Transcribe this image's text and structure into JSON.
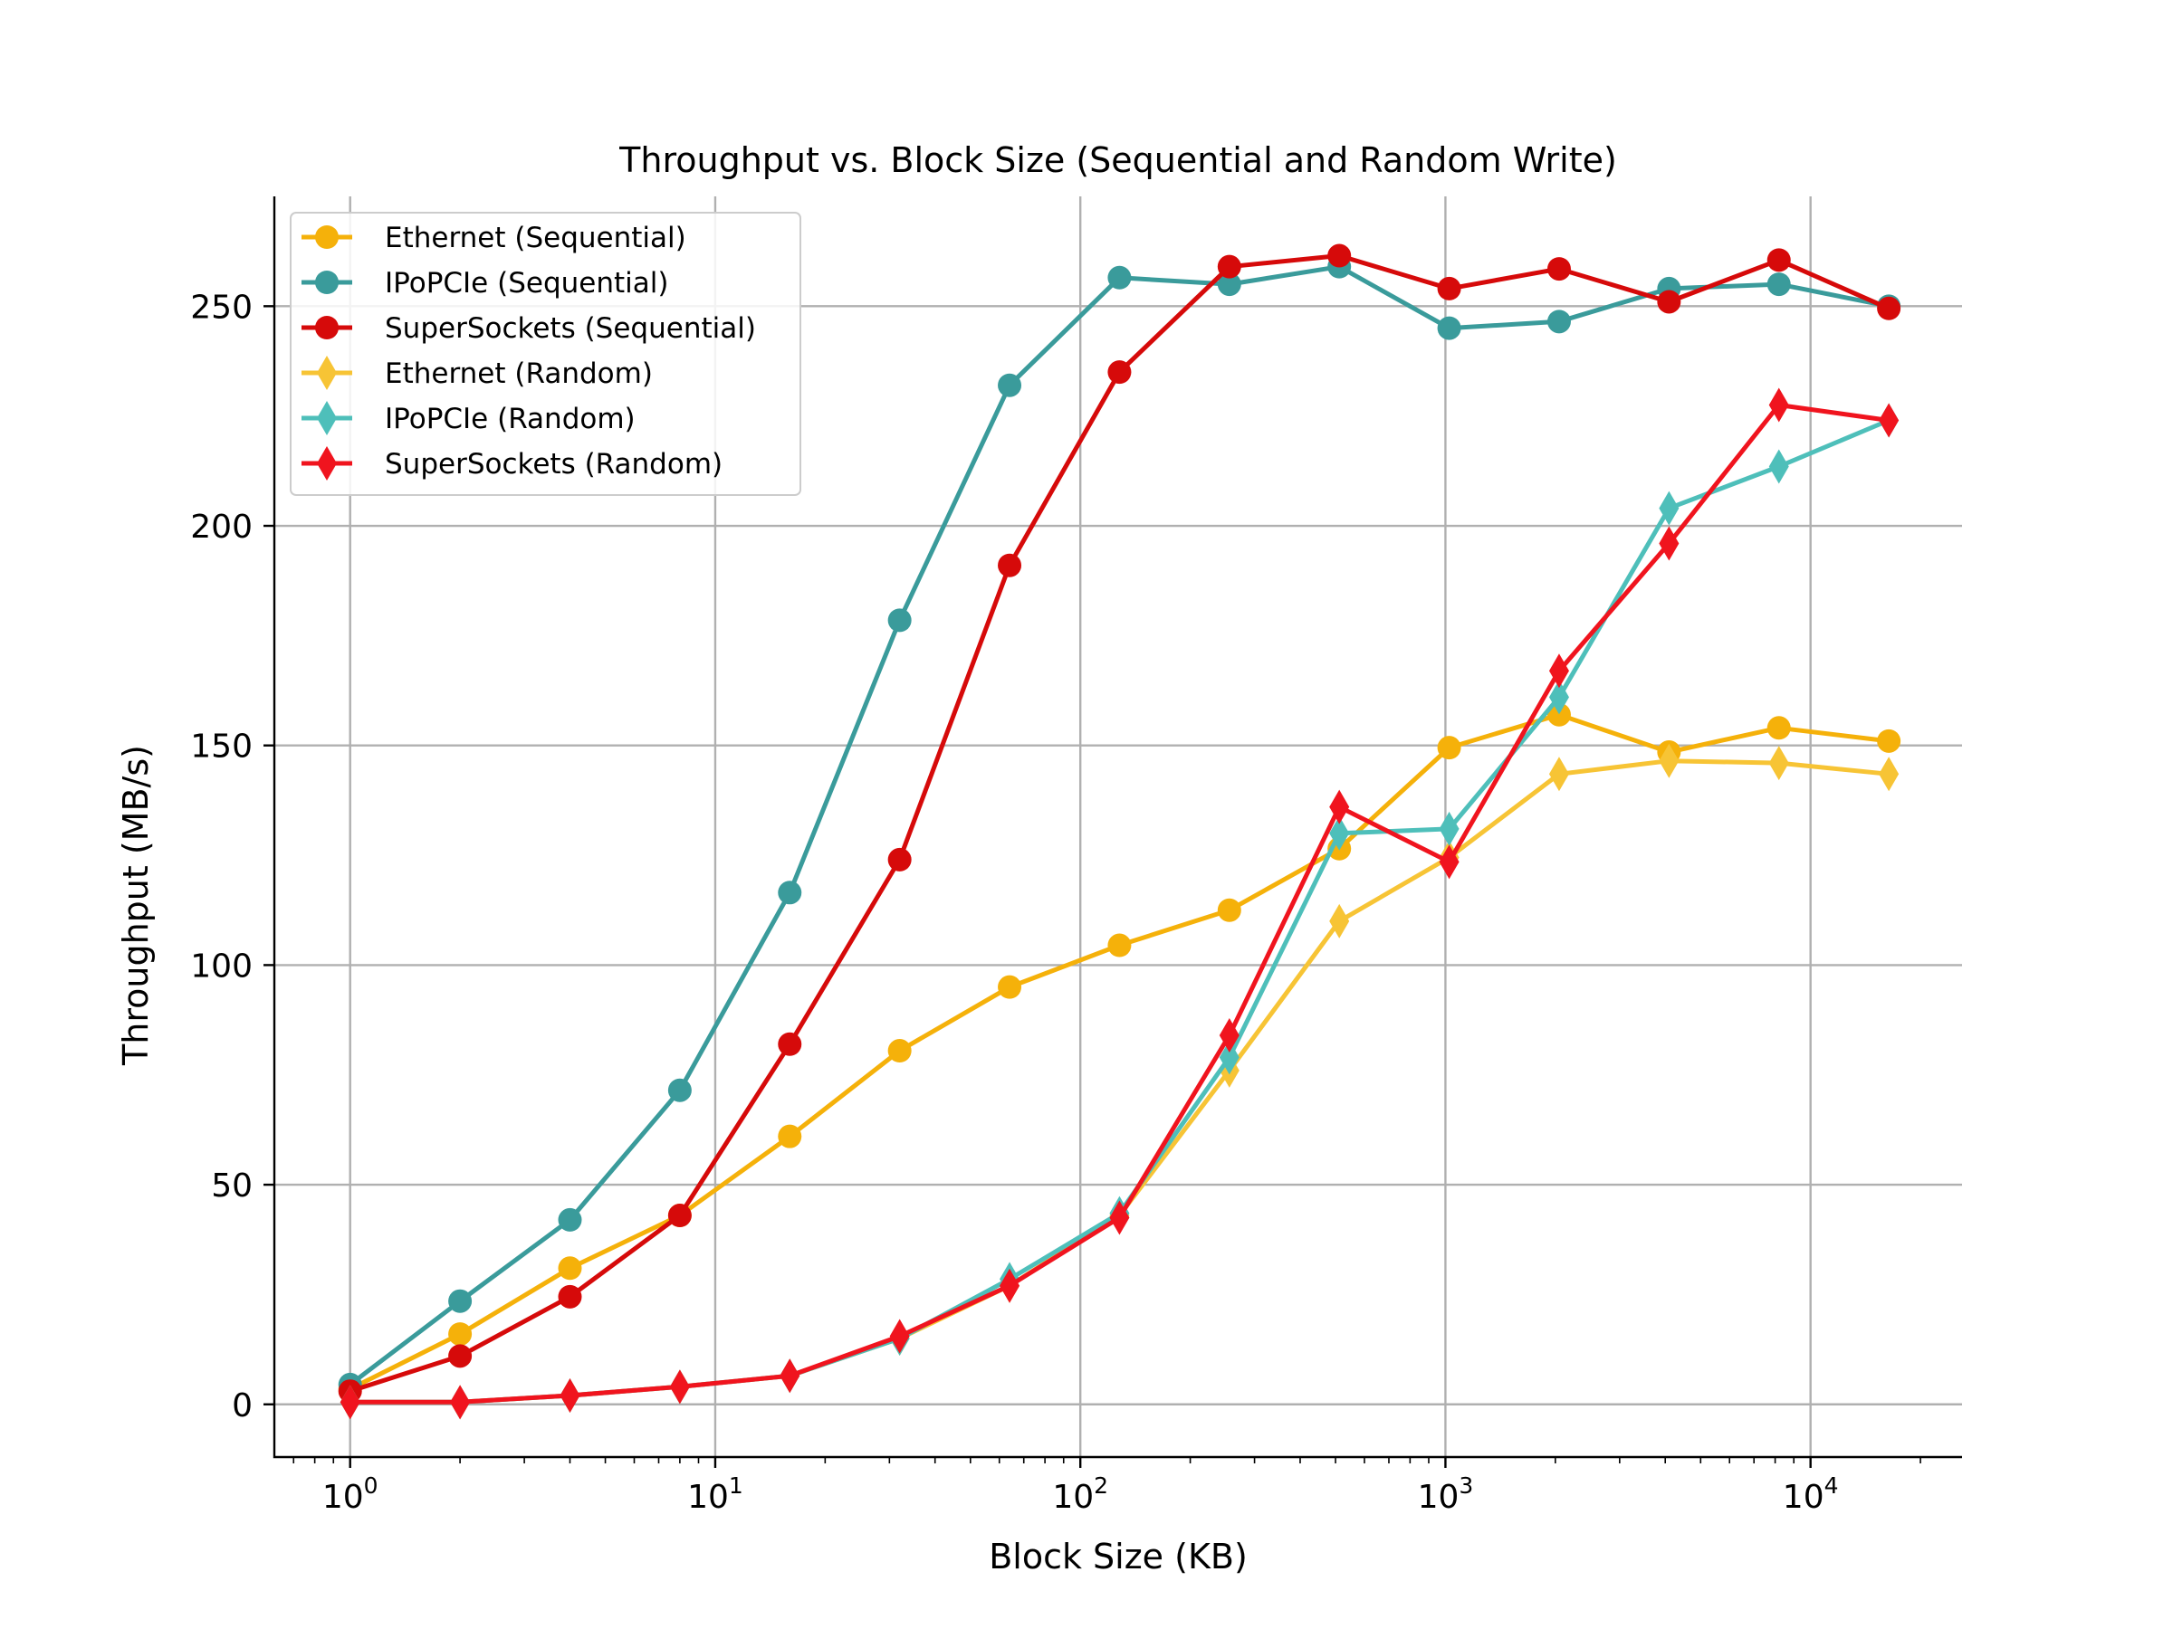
{
  "chart_data": {
    "type": "line",
    "title": "Throughput vs. Block Size (Sequential and Random Write)",
    "xlabel": "Block Size (KB)",
    "ylabel": "Throughput (MB/s)",
    "xscale": "log",
    "xlim": [
      0.62,
      26000
    ],
    "ylim": [
      -12,
      275
    ],
    "xticks": [
      {
        "value": 1,
        "base": "10",
        "exp": "0"
      },
      {
        "value": 10,
        "base": "10",
        "exp": "1"
      },
      {
        "value": 100,
        "base": "10",
        "exp": "2"
      },
      {
        "value": 1000,
        "base": "10",
        "exp": "3"
      },
      {
        "value": 10000,
        "base": "10",
        "exp": "4"
      }
    ],
    "yticks": [
      {
        "value": 0,
        "label": "0"
      },
      {
        "value": 50,
        "label": "50"
      },
      {
        "value": 100,
        "label": "100"
      },
      {
        "value": 150,
        "label": "150"
      },
      {
        "value": 200,
        "label": "200"
      },
      {
        "value": 250,
        "label": "250"
      }
    ],
    "grid": true,
    "legend_position": "top-left",
    "x": [
      1,
      2,
      4,
      8,
      16,
      32,
      64,
      128,
      256,
      512,
      1024,
      2048,
      4096,
      8192,
      16384
    ],
    "series": [
      {
        "name": "Ethernet (Sequential)",
        "color": "#f5b10a",
        "marker": "circle",
        "values": [
          3.5,
          16,
          31,
          43,
          61,
          80.5,
          95,
          104.5,
          112.5,
          126.5,
          149.5,
          157,
          148.5,
          154,
          151
        ]
      },
      {
        "name": "IPoPCIe (Sequential)",
        "color": "#3a9b9b",
        "marker": "circle",
        "values": [
          4.5,
          23.5,
          42,
          71.5,
          116.5,
          178.5,
          232,
          256.5,
          255,
          259,
          245,
          246.5,
          254,
          255,
          250
        ]
      },
      {
        "name": "SuperSockets (Sequential)",
        "color": "#d60a0a",
        "marker": "circle",
        "values": [
          3,
          11,
          24.5,
          43,
          82,
          124,
          191,
          235,
          259,
          261.5,
          254,
          258.5,
          251,
          260.5,
          249.5
        ]
      },
      {
        "name": "Ethernet (Random)",
        "color": "#f7c435",
        "marker": "diamond",
        "values": [
          0.5,
          0.5,
          2,
          4,
          6.5,
          15,
          27,
          43,
          76,
          110,
          124.5,
          143.5,
          146.5,
          146,
          143.5
        ]
      },
      {
        "name": "IPoPCIe (Random)",
        "color": "#4ebfba",
        "marker": "diamond",
        "values": [
          0.5,
          0.5,
          2,
          4,
          6.5,
          15,
          28.5,
          43.5,
          79,
          130,
          131,
          161,
          204,
          213.5,
          224
        ]
      },
      {
        "name": "SuperSockets (Random)",
        "color": "#f0141e",
        "marker": "diamond",
        "values": [
          0.5,
          0.5,
          2,
          4,
          6.5,
          15.5,
          27,
          42.5,
          84,
          136,
          123.5,
          167,
          196,
          227.5,
          224
        ]
      }
    ]
  }
}
